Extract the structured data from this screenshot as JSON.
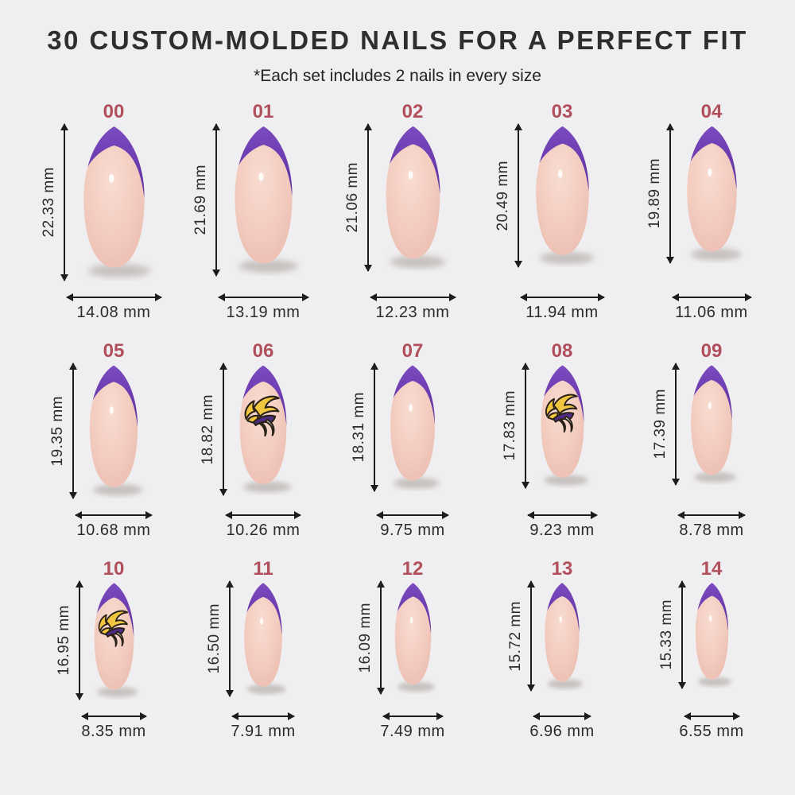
{
  "page": {
    "title": "30 CUSTOM-MOLDED NAILS FOR A PERFECT FIT",
    "subtitle": "*Each set includes 2 nails in every size"
  },
  "colors": {
    "background": "#efeef0",
    "title_text": "#2e2d2f",
    "subtitle_text": "#232323",
    "size_label": "#b14f5c",
    "measure_text": "#2b2a2c",
    "arrow": "#1d1d1d",
    "tip_purple_light": "#7d4cc2",
    "tip_purple_dark": "#5a2f9e",
    "base_pink_light": "#f8dcd1",
    "base_pink": "#f3cbbf",
    "base_pink_edge": "#e9baad",
    "nail_shadow": "#b9b1ad",
    "decal_gold": "#f0c53f",
    "decal_purple": "#4e2c86",
    "decal_white": "#ffffff",
    "decal_outline": "#2a2218"
  },
  "nails": [
    {
      "label": "00",
      "height": "22.33 mm",
      "width": "14.08 mm",
      "decal": false
    },
    {
      "label": "01",
      "height": "21.69 mm",
      "width": "13.19 mm",
      "decal": false
    },
    {
      "label": "02",
      "height": "21.06 mm",
      "width": "12.23 mm",
      "decal": false
    },
    {
      "label": "03",
      "height": "20.49 mm",
      "width": "11.94 mm",
      "decal": false
    },
    {
      "label": "04",
      "height": "19.89 mm",
      "width": "11.06 mm",
      "decal": false
    },
    {
      "label": "05",
      "height": "19.35 mm",
      "width": "10.68 mm",
      "decal": false
    },
    {
      "label": "06",
      "height": "18.82 mm",
      "width": "10.26 mm",
      "decal": true
    },
    {
      "label": "07",
      "height": "18.31 mm",
      "width": "9.75 mm",
      "decal": false
    },
    {
      "label": "08",
      "height": "17.83 mm",
      "width": "9.23 mm",
      "decal": true
    },
    {
      "label": "09",
      "height": "17.39 mm",
      "width": "8.78 mm",
      "decal": false
    },
    {
      "label": "10",
      "height": "16.95 mm",
      "width": "8.35 mm",
      "decal": true
    },
    {
      "label": "11",
      "height": "16.50 mm",
      "width": "7.91 mm",
      "decal": false
    },
    {
      "label": "12",
      "height": "16.09 mm",
      "width": "7.49 mm",
      "decal": false
    },
    {
      "label": "13",
      "height": "15.72 mm",
      "width": "6.96 mm",
      "decal": false
    },
    {
      "label": "14",
      "height": "15.33 mm",
      "width": "6.55 mm",
      "decal": false
    }
  ]
}
